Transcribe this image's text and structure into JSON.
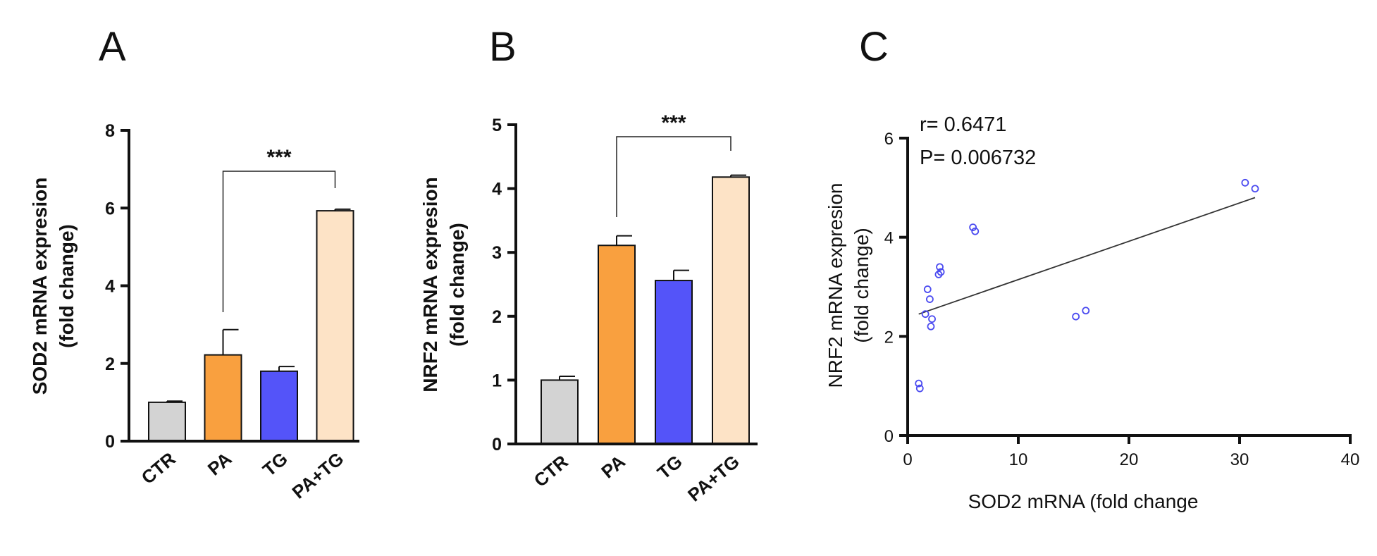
{
  "panels": {
    "a": {
      "letter": "A"
    },
    "b": {
      "letter": "B"
    },
    "c": {
      "letter": "C"
    }
  },
  "chart_data": [
    {
      "type": "bar",
      "panel": "A",
      "categories": [
        "CTR",
        "PA",
        "TG",
        "PA+TG"
      ],
      "values": [
        1.0,
        2.22,
        1.8,
        5.93
      ],
      "errors": [
        0.03,
        0.65,
        0.12,
        0.04
      ],
      "colors": [
        "#d3d3d3",
        "#f9a03f",
        "#5454f9",
        "#fde3c6"
      ],
      "ylabel_line1": "SOD2 mRNA expresion",
      "ylabel_line2": "(fold change)",
      "ylim": [
        0,
        8
      ],
      "yticks": [
        "0",
        "2",
        "4",
        "6",
        "8"
      ],
      "significance": {
        "from": "PA",
        "to": "PA+TG",
        "label": "***"
      }
    },
    {
      "type": "bar",
      "panel": "B",
      "categories": [
        "CTR",
        "PA",
        "TG",
        "PA+TG"
      ],
      "values": [
        1.0,
        3.11,
        2.56,
        4.18
      ],
      "errors": [
        0.06,
        0.15,
        0.16,
        0.03
      ],
      "colors": [
        "#d3d3d3",
        "#f9a03f",
        "#5454f9",
        "#fde3c6"
      ],
      "ylabel_line1": "NRF2 mRNA expresion",
      "ylabel_line2": "(fold change)",
      "ylim": [
        0,
        5
      ],
      "yticks": [
        "0",
        "1",
        "2",
        "3",
        "4",
        "5"
      ],
      "significance": {
        "from": "PA",
        "to": "PA+TG",
        "label": "***"
      }
    },
    {
      "type": "scatter",
      "panel": "C",
      "points": [
        [
          1.0,
          1.05
        ],
        [
          1.1,
          0.95
        ],
        [
          1.8,
          2.95
        ],
        [
          2.0,
          2.75
        ],
        [
          1.6,
          2.45
        ],
        [
          2.2,
          2.35
        ],
        [
          2.1,
          2.2
        ],
        [
          2.9,
          3.4
        ],
        [
          3.0,
          3.3
        ],
        [
          2.8,
          3.25
        ],
        [
          5.9,
          4.2
        ],
        [
          6.1,
          4.12
        ],
        [
          15.2,
          2.4
        ],
        [
          16.1,
          2.52
        ],
        [
          30.5,
          5.1
        ],
        [
          31.4,
          4.98
        ]
      ],
      "fit_line": {
        "x": [
          1.0,
          31.4
        ],
        "y": [
          2.45,
          4.8
        ]
      },
      "marker_color": "#4a4af0",
      "xlabel": "SOD2 mRNA (fold change",
      "ylabel_line1": "NRF2 mRNA expresion",
      "ylabel_line2": "(fold change)",
      "xlim": [
        0,
        40
      ],
      "ylim": [
        0,
        6
      ],
      "xticks": [
        "0",
        "10",
        "20",
        "30",
        "40"
      ],
      "yticks": [
        "0",
        "2",
        "4",
        "6"
      ],
      "r_label": "r= 0.6471",
      "p_label": "P= 0.006732"
    }
  ]
}
